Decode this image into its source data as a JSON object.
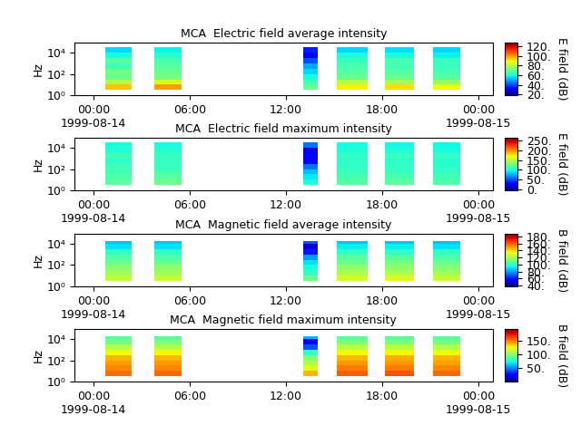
{
  "chart_data": [
    {
      "type": "heatmap",
      "title": "MCA  Electric field average intensity",
      "y_label": "Hz",
      "colorbar_label": "E field (dB)",
      "log": "y",
      "grid": false,
      "xlim": [
        "1999-08-13 22:48",
        "1999-08-15 00:54"
      ],
      "xticks": [
        {
          "value": "1999-08-14 00:00",
          "label": "00:00\n1999-08-14"
        },
        {
          "value": "1999-08-14 06:00",
          "label": "06:00"
        },
        {
          "value": "1999-08-14 12:00",
          "label": "12:00"
        },
        {
          "value": "1999-08-14 18:00",
          "label": "18:00"
        },
        {
          "value": "1999-08-15 00:00",
          "label": "00:00\n1999-08-15"
        }
      ],
      "ylim": [
        1,
        90000
      ],
      "yticks": [
        {
          "value": 1,
          "label": "10⁰"
        },
        {
          "value": 100,
          "label": "10²"
        },
        {
          "value": 10000,
          "label": "10⁴"
        }
      ],
      "freq_edges": [
        3.2,
        10,
        31.6,
        100,
        316,
        1000,
        3160,
        10000,
        31600
      ],
      "colorbar_range": [
        18,
        128
      ],
      "colorbar_ticks": [
        {
          "value": 20,
          "label": "20."
        },
        {
          "value": 40,
          "label": "40."
        },
        {
          "value": 60,
          "label": "60."
        },
        {
          "value": 80,
          "label": "80."
        },
        {
          "value": 100,
          "label": "100."
        },
        {
          "value": 120,
          "label": "120."
        }
      ],
      "segments": [
        {
          "start": "1999-08-14 00:44",
          "end": "1999-08-14 02:24",
          "values": [
            95,
            80,
            70,
            72,
            65,
            68,
            60,
            55
          ]
        },
        {
          "start": "1999-08-14 03:48",
          "end": "1999-08-14 05:30",
          "values": [
            100,
            85,
            72,
            70,
            68,
            66,
            62,
            58
          ]
        },
        {
          "start": "1999-08-14 13:06",
          "end": "1999-08-14 14:00",
          "values": [
            70,
            65,
            60,
            55,
            50,
            40,
            30,
            35
          ]
        },
        {
          "start": "1999-08-14 15:12",
          "end": "1999-08-14 17:06",
          "values": [
            90,
            80,
            70,
            68,
            66,
            64,
            60,
            55
          ]
        },
        {
          "start": "1999-08-14 18:12",
          "end": "1999-08-14 20:00",
          "values": [
            92,
            78,
            70,
            68,
            65,
            66,
            60,
            56
          ]
        },
        {
          "start": "1999-08-14 21:12",
          "end": "1999-08-14 22:54",
          "values": [
            88,
            76,
            68,
            66,
            64,
            64,
            58,
            55
          ]
        }
      ]
    },
    {
      "type": "heatmap",
      "title": "MCA  Electric field maximum intensity",
      "y_label": "Hz",
      "colorbar_label": "E field (dB)",
      "log": "y",
      "grid": false,
      "xlim": [
        "1999-08-13 22:48",
        "1999-08-15 00:54"
      ],
      "xticks": [
        {
          "value": "1999-08-14 00:00",
          "label": "00:00\n1999-08-14"
        },
        {
          "value": "1999-08-14 06:00",
          "label": "06:00"
        },
        {
          "value": "1999-08-14 12:00",
          "label": "12:00"
        },
        {
          "value": "1999-08-14 18:00",
          "label": "18:00"
        },
        {
          "value": "1999-08-15 00:00",
          "label": "00:00\n1999-08-15"
        }
      ],
      "ylim": [
        1,
        90000
      ],
      "yticks": [
        {
          "value": 1,
          "label": "10⁰"
        },
        {
          "value": 100,
          "label": "10²"
        },
        {
          "value": 10000,
          "label": "10⁴"
        }
      ],
      "freq_edges": [
        3.2,
        10,
        31.6,
        100,
        316,
        1000,
        3160,
        10000,
        31600
      ],
      "colorbar_range": [
        -5,
        265
      ],
      "colorbar_ticks": [
        {
          "value": 0,
          "label": "0."
        },
        {
          "value": 50,
          "label": "50."
        },
        {
          "value": 100,
          "label": "100."
        },
        {
          "value": 150,
          "label": "150."
        },
        {
          "value": 200,
          "label": "200."
        },
        {
          "value": 250,
          "label": "250."
        }
      ],
      "segments": [
        {
          "start": "1999-08-14 00:44",
          "end": "1999-08-14 02:24",
          "values": [
            120,
            115,
            110,
            110,
            105,
            110,
            100,
            100
          ]
        },
        {
          "start": "1999-08-14 03:48",
          "end": "1999-08-14 05:30",
          "values": [
            125,
            118,
            112,
            108,
            106,
            108,
            102,
            98
          ]
        },
        {
          "start": "1999-08-14 13:06",
          "end": "1999-08-14 14:00",
          "values": [
            100,
            90,
            80,
            60,
            30,
            30,
            20,
            60
          ]
        },
        {
          "start": "1999-08-14 15:12",
          "end": "1999-08-14 17:06",
          "values": [
            118,
            112,
            108,
            106,
            104,
            106,
            100,
            98
          ]
        },
        {
          "start": "1999-08-14 18:12",
          "end": "1999-08-14 20:00",
          "values": [
            120,
            114,
            108,
            106,
            104,
            108,
            100,
            96
          ]
        },
        {
          "start": "1999-08-14 21:12",
          "end": "1999-08-14 22:54",
          "values": [
            116,
            110,
            106,
            104,
            102,
            106,
            98,
            96
          ]
        }
      ]
    },
    {
      "type": "heatmap",
      "title": "MCA  Magnetic field average intensity",
      "y_label": "Hz",
      "colorbar_label": "B field (dB)",
      "log": "y",
      "grid": false,
      "xlim": [
        "1999-08-13 22:48",
        "1999-08-15 00:54"
      ],
      "xticks": [
        {
          "value": "1999-08-14 00:00",
          "label": "00:00\n1999-08-14"
        },
        {
          "value": "1999-08-14 06:00",
          "label": "06:00"
        },
        {
          "value": "1999-08-14 12:00",
          "label": "12:00"
        },
        {
          "value": "1999-08-14 18:00",
          "label": "18:00"
        },
        {
          "value": "1999-08-15 00:00",
          "label": "00:00\n1999-08-15"
        }
      ],
      "ylim": [
        1,
        90000
      ],
      "yticks": [
        {
          "value": 1,
          "label": "10⁰"
        },
        {
          "value": 100,
          "label": "10²"
        },
        {
          "value": 10000,
          "label": "10⁴"
        }
      ],
      "freq_edges": [
        3.2,
        10,
        31.6,
        100,
        316,
        1000,
        3160,
        10000,
        17800
      ],
      "colorbar_range": [
        38,
        188
      ],
      "colorbar_ticks": [
        {
          "value": 40,
          "label": "40."
        },
        {
          "value": 60,
          "label": "60."
        },
        {
          "value": 80,
          "label": "80."
        },
        {
          "value": 100,
          "label": "100."
        },
        {
          "value": 120,
          "label": "120."
        },
        {
          "value": 140,
          "label": "140."
        },
        {
          "value": 160,
          "label": "160."
        },
        {
          "value": 180,
          "label": "180."
        }
      ],
      "segments": [
        {
          "start": "1999-08-14 00:44",
          "end": "1999-08-14 02:24",
          "values": [
            125,
            120,
            115,
            110,
            105,
            100,
            90,
            85
          ]
        },
        {
          "start": "1999-08-14 03:48",
          "end": "1999-08-14 05:30",
          "values": [
            126,
            120,
            116,
            110,
            104,
            100,
            90,
            86
          ]
        },
        {
          "start": "1999-08-14 13:06",
          "end": "1999-08-14 14:00",
          "values": [
            110,
            100,
            95,
            90,
            80,
            60,
            50,
            70
          ]
        },
        {
          "start": "1999-08-14 15:12",
          "end": "1999-08-14 17:06",
          "values": [
            128,
            122,
            116,
            110,
            106,
            100,
            92,
            86
          ]
        },
        {
          "start": "1999-08-14 18:12",
          "end": "1999-08-14 20:00",
          "values": [
            130,
            122,
            116,
            112,
            106,
            100,
            92,
            86
          ]
        },
        {
          "start": "1999-08-14 21:12",
          "end": "1999-08-14 22:54",
          "values": [
            126,
            120,
            114,
            110,
            104,
            100,
            90,
            85
          ]
        }
      ]
    },
    {
      "type": "heatmap",
      "title": "MCA  Magnetic field maximum intensity",
      "y_label": "Hz",
      "colorbar_label": "B field (dB)",
      "log": "y",
      "grid": false,
      "xlim": [
        "1999-08-13 22:48",
        "1999-08-15 00:54"
      ],
      "xticks": [
        {
          "value": "1999-08-14 00:00",
          "label": "00:00\n1999-08-14"
        },
        {
          "value": "1999-08-14 06:00",
          "label": "06:00"
        },
        {
          "value": "1999-08-14 12:00",
          "label": "12:00"
        },
        {
          "value": "1999-08-14 18:00",
          "label": "18:00"
        },
        {
          "value": "1999-08-15 00:00",
          "label": "00:00\n1999-08-15"
        }
      ],
      "ylim": [
        1,
        90000
      ],
      "yticks": [
        {
          "value": 1,
          "label": "10⁰"
        },
        {
          "value": 100,
          "label": "10²"
        },
        {
          "value": 10000,
          "label": "10⁴"
        }
      ],
      "freq_edges": [
        3.2,
        10,
        31.6,
        100,
        316,
        1000,
        3160,
        10000,
        17800
      ],
      "colorbar_range": [
        0,
        195
      ],
      "colorbar_ticks": [
        {
          "value": 50,
          "label": "50."
        },
        {
          "value": 100,
          "label": "100."
        },
        {
          "value": 150,
          "label": "150."
        }
      ],
      "segments": [
        {
          "start": "1999-08-14 00:44",
          "end": "1999-08-14 02:24",
          "values": [
            155,
            150,
            145,
            140,
            125,
            110,
            95,
            90
          ]
        },
        {
          "start": "1999-08-14 03:48",
          "end": "1999-08-14 05:30",
          "values": [
            156,
            150,
            146,
            140,
            126,
            110,
            96,
            90
          ]
        },
        {
          "start": "1999-08-14 13:06",
          "end": "1999-08-14 14:00",
          "values": [
            140,
            120,
            110,
            100,
            80,
            40,
            20,
            60
          ]
        },
        {
          "start": "1999-08-14 15:12",
          "end": "1999-08-14 17:06",
          "values": [
            158,
            152,
            146,
            140,
            126,
            112,
            96,
            90
          ]
        },
        {
          "start": "1999-08-14 18:12",
          "end": "1999-08-14 20:00",
          "values": [
            160,
            152,
            146,
            142,
            126,
            112,
            96,
            90
          ]
        },
        {
          "start": "1999-08-14 21:12",
          "end": "1999-08-14 22:54",
          "values": [
            156,
            150,
            144,
            140,
            124,
            110,
            95,
            90
          ]
        }
      ]
    }
  ]
}
